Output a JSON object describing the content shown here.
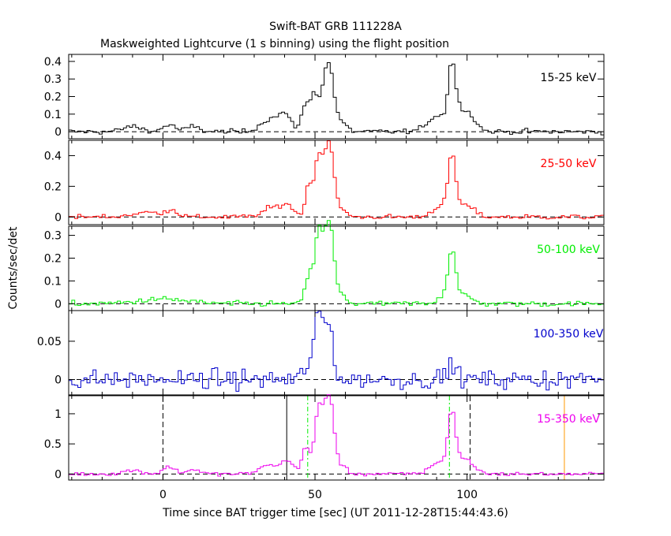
{
  "chart_data": {
    "type": "line",
    "title": "Swift-BAT GRB 111228A",
    "subtitle": "Maskweighted Lightcurve (1 s binning) using the flight position",
    "xlabel": "Time since BAT trigger time [sec] (UT 2011-12-28T15:44:43.6)",
    "ylabel": "Counts/sec/det",
    "xlim": [
      -31,
      145
    ],
    "x_ticks": [
      0,
      50,
      100
    ],
    "panels": [
      {
        "band": "15-25 keV",
        "color": "#000000",
        "ylim": [
          -0.04,
          0.44
        ],
        "y_ticks": [
          0,
          0.1,
          0.2,
          0.3,
          0.4
        ],
        "y_tick_labels": [
          "0",
          "0.1",
          "0.2",
          "0.3",
          "0.4"
        ],
        "bg_noise": 0.007,
        "bursts": [
          {
            "t": -10,
            "amp": 0.03,
            "w": 3
          },
          {
            "t": 2,
            "amp": 0.04,
            "w": 2
          },
          {
            "t": 10,
            "amp": 0.03,
            "w": 2
          },
          {
            "t": 35,
            "amp": 0.07,
            "w": 3
          },
          {
            "t": 40,
            "amp": 0.09,
            "w": 2
          },
          {
            "t": 47,
            "amp": 0.15,
            "w": 1.5
          },
          {
            "t": 50,
            "amp": 0.2,
            "w": 1.2
          },
          {
            "t": 53,
            "amp": 0.22,
            "w": 1.2
          },
          {
            "t": 55,
            "amp": 0.3,
            "w": 1.3
          },
          {
            "t": 58,
            "amp": 0.06,
            "w": 2
          },
          {
            "t": 90,
            "amp": 0.09,
            "w": 3
          },
          {
            "t": 95,
            "amp": 0.33,
            "w": 1.2
          },
          {
            "t": 99,
            "amp": 0.13,
            "w": 3
          }
        ]
      },
      {
        "band": "25-50 keV",
        "color": "#ff0000",
        "ylim": [
          -0.05,
          0.5
        ],
        "y_ticks": [
          0,
          0.2,
          0.4
        ],
        "y_tick_labels": [
          "0",
          "0.2",
          "0.4"
        ],
        "bg_noise": 0.008,
        "bursts": [
          {
            "t": -5,
            "amp": 0.03,
            "w": 5
          },
          {
            "t": 3,
            "amp": 0.04,
            "w": 2
          },
          {
            "t": 36,
            "amp": 0.06,
            "w": 3
          },
          {
            "t": 41,
            "amp": 0.07,
            "w": 2
          },
          {
            "t": 48,
            "amp": 0.2,
            "w": 1.2
          },
          {
            "t": 51,
            "amp": 0.35,
            "w": 1.2
          },
          {
            "t": 53,
            "amp": 0.2,
            "w": 1.2
          },
          {
            "t": 55,
            "amp": 0.42,
            "w": 1.3
          },
          {
            "t": 58,
            "amp": 0.05,
            "w": 2
          },
          {
            "t": 91,
            "amp": 0.07,
            "w": 2.5
          },
          {
            "t": 95,
            "amp": 0.36,
            "w": 1.2
          },
          {
            "t": 99,
            "amp": 0.08,
            "w": 3
          }
        ]
      },
      {
        "band": "50-100 keV",
        "color": "#00ee00",
        "ylim": [
          -0.03,
          0.34
        ],
        "y_ticks": [
          0,
          0.1,
          0.2,
          0.3
        ],
        "y_tick_labels": [
          "0",
          "0.1",
          "0.2",
          "0.3"
        ],
        "bg_noise": 0.006,
        "bursts": [
          {
            "t": 0,
            "amp": 0.02,
            "w": 8
          },
          {
            "t": 48,
            "amp": 0.12,
            "w": 1.2
          },
          {
            "t": 51,
            "amp": 0.28,
            "w": 1.2
          },
          {
            "t": 53,
            "amp": 0.16,
            "w": 1.2
          },
          {
            "t": 55,
            "amp": 0.3,
            "w": 1.3
          },
          {
            "t": 58,
            "amp": 0.04,
            "w": 2
          },
          {
            "t": 92,
            "amp": 0.03,
            "w": 2
          },
          {
            "t": 95,
            "amp": 0.21,
            "w": 1.2
          },
          {
            "t": 98,
            "amp": 0.04,
            "w": 3
          }
        ]
      },
      {
        "band": "100-350 keV",
        "color": "#0000cc",
        "ylim": [
          -0.02,
          0.09
        ],
        "y_ticks": [
          0,
          0.05
        ],
        "y_tick_labels": [
          "0",
          "0.05"
        ],
        "bg_noise": 0.006,
        "bursts": [
          {
            "t": 48,
            "amp": 0.02,
            "w": 1.5
          },
          {
            "t": 51,
            "amp": 0.075,
            "w": 1.2
          },
          {
            "t": 53,
            "amp": 0.04,
            "w": 1.2
          },
          {
            "t": 55,
            "amp": 0.06,
            "w": 1.2
          },
          {
            "t": 95,
            "amp": 0.02,
            "w": 1.5
          }
        ]
      },
      {
        "band": "15-350 keV",
        "color": "#ee00ee",
        "ylim": [
          -0.1,
          1.3
        ],
        "y_ticks": [
          0,
          0.5,
          1
        ],
        "y_tick_labels": [
          "0",
          "0.5",
          "1"
        ],
        "bg_noise": 0.015,
        "bursts": [
          {
            "t": -10,
            "amp": 0.06,
            "w": 3
          },
          {
            "t": 2,
            "amp": 0.12,
            "w": 2
          },
          {
            "t": 10,
            "amp": 0.08,
            "w": 2
          },
          {
            "t": 35,
            "amp": 0.15,
            "w": 3
          },
          {
            "t": 41,
            "amp": 0.2,
            "w": 2
          },
          {
            "t": 47,
            "amp": 0.45,
            "w": 1.3
          },
          {
            "t": 51,
            "amp": 0.95,
            "w": 1.2
          },
          {
            "t": 53,
            "amp": 0.6,
            "w": 1.2
          },
          {
            "t": 55,
            "amp": 1.1,
            "w": 1.3
          },
          {
            "t": 58,
            "amp": 0.15,
            "w": 2
          },
          {
            "t": 91,
            "amp": 0.2,
            "w": 3
          },
          {
            "t": 95,
            "amp": 0.9,
            "w": 1.2
          },
          {
            "t": 99,
            "amp": 0.25,
            "w": 3
          }
        ],
        "markers": [
          {
            "t": 0,
            "color": "#000000",
            "style": "dashed"
          },
          {
            "t": 40.7,
            "color": "#000000",
            "style": "solid"
          },
          {
            "t": 47.6,
            "color": "#00ee00",
            "style": "dashdot"
          },
          {
            "t": 94.2,
            "color": "#00ee00",
            "style": "dashdot"
          },
          {
            "t": 101,
            "color": "#000000",
            "style": "dashed"
          },
          {
            "t": 132,
            "color": "#ff9900",
            "style": "solid"
          }
        ]
      }
    ]
  }
}
